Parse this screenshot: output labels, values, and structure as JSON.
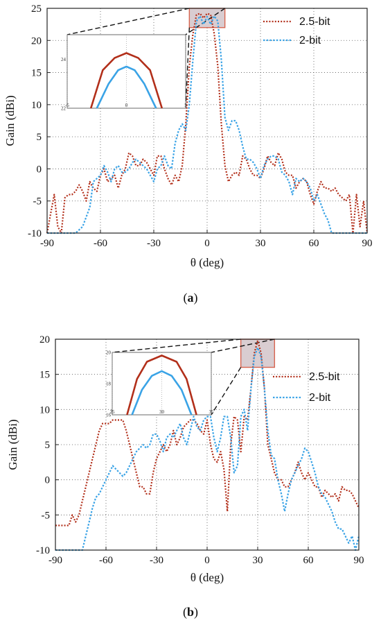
{
  "colors": {
    "s25": "#b22f1a",
    "s2": "#3aa3e6",
    "zoom_fill": "#d9cdd1",
    "zoom_stroke": "#d7644f"
  },
  "panels": [
    {
      "caption_open": "(",
      "caption_letter": "a",
      "caption_close": ")"
    },
    {
      "caption_open": "(",
      "caption_letter": "b",
      "caption_close": ")"
    }
  ],
  "chart_data": [
    {
      "type": "line",
      "xlabel": "θ (deg)",
      "ylabel": "Gain (dBi)",
      "xlim": [
        -90,
        90
      ],
      "ylim": [
        -10,
        25
      ],
      "xticks": [
        "-90",
        "-60",
        "-30",
        "0",
        "30",
        "60",
        "90"
      ],
      "yticks": [
        "-10",
        "-5",
        "0",
        "5",
        "10",
        "15",
        "20",
        "25"
      ],
      "grid": true,
      "legend_position": "top-right",
      "zoom_box": {
        "x": [
          -10,
          10
        ],
        "y": [
          22,
          25
        ]
      },
      "inset": {
        "xlim": [
          -5,
          5
        ],
        "ylim": [
          22,
          25
        ],
        "xticks": [
          "-5",
          "0",
          "5"
        ],
        "yticks": [
          "22",
          "24"
        ],
        "series": [
          {
            "name": "2.5-bit",
            "x": [
              -3,
              -2,
              -1,
              0,
              1,
              2,
              3
            ],
            "y": [
              22.0,
              23.55,
              24.05,
              24.25,
              24.05,
              23.55,
              22.0
            ]
          },
          {
            "name": "2-bit",
            "x": [
              -2.5,
              -1.5,
              -0.7,
              0,
              0.7,
              1.5,
              2.5
            ],
            "y": [
              22.0,
              23.0,
              23.55,
              23.7,
              23.55,
              23.0,
              22.0
            ]
          }
        ]
      },
      "series": [
        {
          "name": "2.5-bit",
          "x": [
            -90,
            -88,
            -86,
            -84,
            -82,
            -80,
            -78,
            -76,
            -74,
            -72,
            -70,
            -68,
            -66,
            -64,
            -62,
            -60,
            -58,
            -56,
            -54,
            -52,
            -50,
            -48,
            -46,
            -44,
            -42,
            -40,
            -38,
            -36,
            -34,
            -32,
            -30,
            -28,
            -26,
            -24,
            -22,
            -20,
            -18,
            -16,
            -14,
            -12,
            -10,
            -8,
            -6,
            -4,
            -2,
            0,
            2,
            4,
            6,
            8,
            10,
            12,
            14,
            16,
            18,
            20,
            22,
            24,
            26,
            28,
            30,
            32,
            34,
            36,
            38,
            40,
            42,
            44,
            46,
            48,
            50,
            52,
            54,
            56,
            58,
            60,
            62,
            64,
            66,
            68,
            70,
            72,
            74,
            76,
            78,
            80,
            82,
            84,
            86,
            88,
            90
          ],
          "y": [
            -10,
            -7,
            -4,
            -9,
            -10,
            -4.5,
            -4,
            -4,
            -3.5,
            -2.5,
            -3.5,
            -5,
            -2,
            -3,
            -3.5,
            -1,
            0,
            -2,
            -1.5,
            -1,
            -3,
            -1,
            0,
            2.5,
            2,
            0.5,
            0.5,
            1.5,
            1,
            0,
            -1,
            2,
            2,
            0,
            -1.5,
            -2.5,
            -1,
            -2,
            0.5,
            7,
            16,
            21,
            24,
            24.2,
            23.5,
            24.2,
            24,
            21,
            16,
            7,
            0.5,
            -2,
            -1,
            -0.5,
            -1,
            2,
            1.5,
            0,
            -1,
            -1,
            -1.5,
            0,
            2,
            1,
            0.5,
            2.5,
            1.5,
            -0.5,
            -1,
            -1,
            -3,
            -2,
            -1.5,
            -2,
            -4,
            -5.5,
            -3.5,
            -2,
            -3,
            -3,
            -3.5,
            -3,
            -4,
            -4.5,
            -5,
            -4,
            -10,
            -4,
            -9,
            -5,
            -10
          ]
        },
        {
          "name": "2-bit",
          "x": [
            -90,
            -86,
            -82,
            -78,
            -74,
            -70,
            -66,
            -64,
            -62,
            -60,
            -58,
            -56,
            -54,
            -52,
            -50,
            -48,
            -46,
            -44,
            -42,
            -40,
            -38,
            -36,
            -34,
            -32,
            -30,
            -28,
            -26,
            -24,
            -22,
            -20,
            -18,
            -16,
            -14,
            -12,
            -10,
            -8,
            -6,
            -4,
            -2,
            0,
            2,
            4,
            6,
            8,
            10,
            12,
            14,
            16,
            18,
            20,
            22,
            24,
            26,
            28,
            30,
            32,
            34,
            36,
            38,
            40,
            42,
            44,
            46,
            48,
            50,
            52,
            54,
            56,
            58,
            60,
            62,
            64,
            66,
            68,
            70,
            72,
            74,
            76,
            78,
            80,
            82,
            84,
            86,
            88,
            90
          ],
          "y": [
            -10,
            -10,
            -10,
            -10,
            -10,
            -9,
            -6,
            -2,
            -1.5,
            -1,
            0.5,
            -0.5,
            -2,
            0,
            0.5,
            -0.5,
            -0.5,
            0,
            1,
            1.5,
            1,
            0.5,
            0,
            -1,
            -2,
            0,
            0.5,
            2,
            0.5,
            0,
            4,
            6,
            7,
            6,
            10,
            17,
            23,
            23.8,
            22.5,
            23.7,
            22.5,
            23.8,
            23,
            17,
            8,
            6,
            7.5,
            7.5,
            6,
            3.5,
            1.5,
            1.5,
            1,
            0,
            -1.5,
            0.5,
            1.5,
            2,
            2,
            1.5,
            -0.5,
            -1,
            -2,
            -4,
            -1.5,
            -2,
            -1.5,
            -2,
            -3,
            -5,
            -4,
            -5.5,
            -7,
            -8,
            -10,
            -10,
            -10,
            -10,
            -10,
            -10,
            -10,
            -10,
            -10,
            -10,
            -10
          ]
        }
      ]
    },
    {
      "type": "line",
      "xlabel": "θ (deg)",
      "ylabel": "Gain (dBi)",
      "xlim": [
        -90,
        90
      ],
      "ylim": [
        -10,
        20
      ],
      "xticks": [
        "-90",
        "-60",
        "-30",
        "0",
        "30",
        "60",
        "90"
      ],
      "yticks": [
        "-10",
        "-5",
        "0",
        "5",
        "10",
        "15",
        "20"
      ],
      "grid": true,
      "legend_position": "right",
      "zoom_box": {
        "x": [
          20,
          40
        ],
        "y": [
          16,
          20
        ]
      },
      "inset": {
        "xlim": [
          25,
          35
        ],
        "ylim": [
          16,
          20
        ],
        "xticks": [
          "25",
          "30",
          "35"
        ],
        "yticks": [
          "16",
          "18",
          "20"
        ],
        "series": [
          {
            "name": "2.5-bit",
            "x": [
              26.5,
              27.5,
              28.5,
              30,
              31.5,
              32.5,
              33.5
            ],
            "y": [
              16.0,
              18.3,
              19.4,
              19.8,
              19.4,
              18.3,
              16.0
            ]
          },
          {
            "name": "2-bit",
            "x": [
              27,
              28,
              29,
              30,
              31,
              32,
              33
            ],
            "y": [
              16.0,
              17.6,
              18.5,
              18.8,
              18.5,
              17.6,
              16.0
            ]
          }
        ]
      },
      "series": [
        {
          "name": "2.5-bit",
          "x": [
            -90,
            -86,
            -82,
            -80,
            -78,
            -76,
            -74,
            -72,
            -70,
            -68,
            -66,
            -64,
            -62,
            -60,
            -58,
            -56,
            -54,
            -52,
            -50,
            -48,
            -46,
            -44,
            -42,
            -40,
            -38,
            -36,
            -34,
            -32,
            -30,
            -28,
            -26,
            -24,
            -22,
            -20,
            -18,
            -16,
            -14,
            -12,
            -10,
            -8,
            -6,
            -4,
            -2,
            0,
            2,
            4,
            6,
            8,
            10,
            12,
            14,
            16,
            18,
            20,
            22,
            24,
            26,
            28,
            30,
            32,
            34,
            36,
            38,
            40,
            42,
            44,
            46,
            48,
            50,
            52,
            54,
            56,
            58,
            60,
            62,
            64,
            66,
            68,
            70,
            72,
            74,
            76,
            78,
            80,
            82,
            84,
            86,
            88,
            90
          ],
          "y": [
            -6.5,
            -6.5,
            -6.5,
            -5,
            -6,
            -5,
            -3,
            -1,
            1,
            3,
            5,
            7,
            8,
            8,
            8,
            8.5,
            8.5,
            8.5,
            8.5,
            7,
            5,
            3,
            1,
            -1,
            -1,
            -2,
            -2,
            1,
            3,
            4,
            5,
            4,
            5,
            7,
            5,
            6,
            7.5,
            8,
            8.5,
            8.5,
            8,
            7,
            6.5,
            8.5,
            5,
            3,
            2.5,
            4,
            1.5,
            -4.5,
            5,
            9,
            8.5,
            4,
            9,
            8.5,
            13,
            18,
            19.8,
            18,
            13,
            5,
            3,
            1,
            0,
            0,
            -1,
            -1,
            0,
            1,
            2.5,
            1,
            0,
            1,
            0,
            -1,
            -1,
            -2.5,
            -1.5,
            -2,
            -2.5,
            -2,
            -3,
            -1,
            -1.5,
            -1.5,
            -2,
            -3,
            -4
          ]
        },
        {
          "name": "2-bit",
          "x": [
            -90,
            -86,
            -82,
            -80,
            -78,
            -76,
            -74,
            -72,
            -70,
            -68,
            -66,
            -64,
            -62,
            -60,
            -58,
            -56,
            -54,
            -52,
            -50,
            -48,
            -46,
            -44,
            -42,
            -40,
            -38,
            -36,
            -34,
            -32,
            -30,
            -28,
            -26,
            -24,
            -22,
            -20,
            -18,
            -16,
            -14,
            -12,
            -10,
            -8,
            -6,
            -4,
            -2,
            0,
            2,
            4,
            6,
            8,
            10,
            12,
            14,
            16,
            18,
            20,
            22,
            24,
            26,
            28,
            30,
            32,
            34,
            36,
            38,
            40,
            42,
            44,
            46,
            48,
            50,
            52,
            54,
            56,
            58,
            60,
            62,
            64,
            66,
            68,
            70,
            72,
            74,
            76,
            78,
            80,
            82,
            84,
            86,
            88,
            90
          ],
          "y": [
            -10,
            -10,
            -10,
            -10,
            -10,
            -10,
            -10,
            -8,
            -6,
            -4,
            -2.5,
            -2,
            -1,
            0,
            1,
            2,
            1.5,
            1,
            0.5,
            1,
            2,
            3,
            4,
            4.5,
            5,
            4.5,
            5,
            6.5,
            6.5,
            5.5,
            4,
            6,
            6.5,
            6,
            7,
            8,
            6,
            5,
            7,
            9,
            7.5,
            7,
            8.5,
            9,
            9,
            6,
            4,
            6,
            9,
            9,
            6,
            1,
            2,
            9,
            10,
            7,
            13,
            17.5,
            18.8,
            17.5,
            13,
            7,
            3.5,
            3,
            0,
            -2,
            -4.5,
            -2,
            0,
            1,
            2,
            3,
            4.5,
            4,
            2.5,
            1,
            -1,
            -2,
            -2.5,
            -3.5,
            -4.5,
            -6,
            -7,
            -7,
            -8,
            -9,
            -8,
            -10,
            -8
          ]
        }
      ]
    }
  ]
}
